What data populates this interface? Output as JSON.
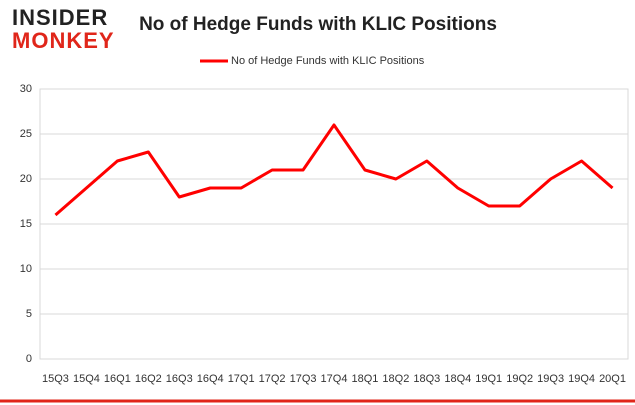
{
  "logo": {
    "top": "INSIDER",
    "bottom": "MONKEY"
  },
  "chart_data": {
    "type": "line",
    "title": "No of Hedge Funds with KLIC Positions",
    "categories": [
      "15Q3",
      "15Q4",
      "16Q1",
      "16Q2",
      "16Q3",
      "16Q4",
      "17Q1",
      "17Q2",
      "17Q3",
      "17Q4",
      "18Q1",
      "18Q2",
      "18Q3",
      "18Q4",
      "19Q1",
      "19Q2",
      "19Q3",
      "19Q4",
      "20Q1"
    ],
    "series": [
      {
        "name": "No of Hedge Funds with KLIC Positions",
        "color": "#ff0000",
        "values": [
          16,
          19,
          22,
          23,
          18,
          19,
          19,
          21,
          21,
          26,
          21,
          20,
          22,
          19,
          17,
          17,
          20,
          22,
          19
        ]
      }
    ],
    "ylim": [
      0,
      30
    ],
    "yticks": [
      0,
      5,
      10,
      15,
      20,
      25,
      30
    ],
    "grid": true,
    "legend": "top"
  }
}
